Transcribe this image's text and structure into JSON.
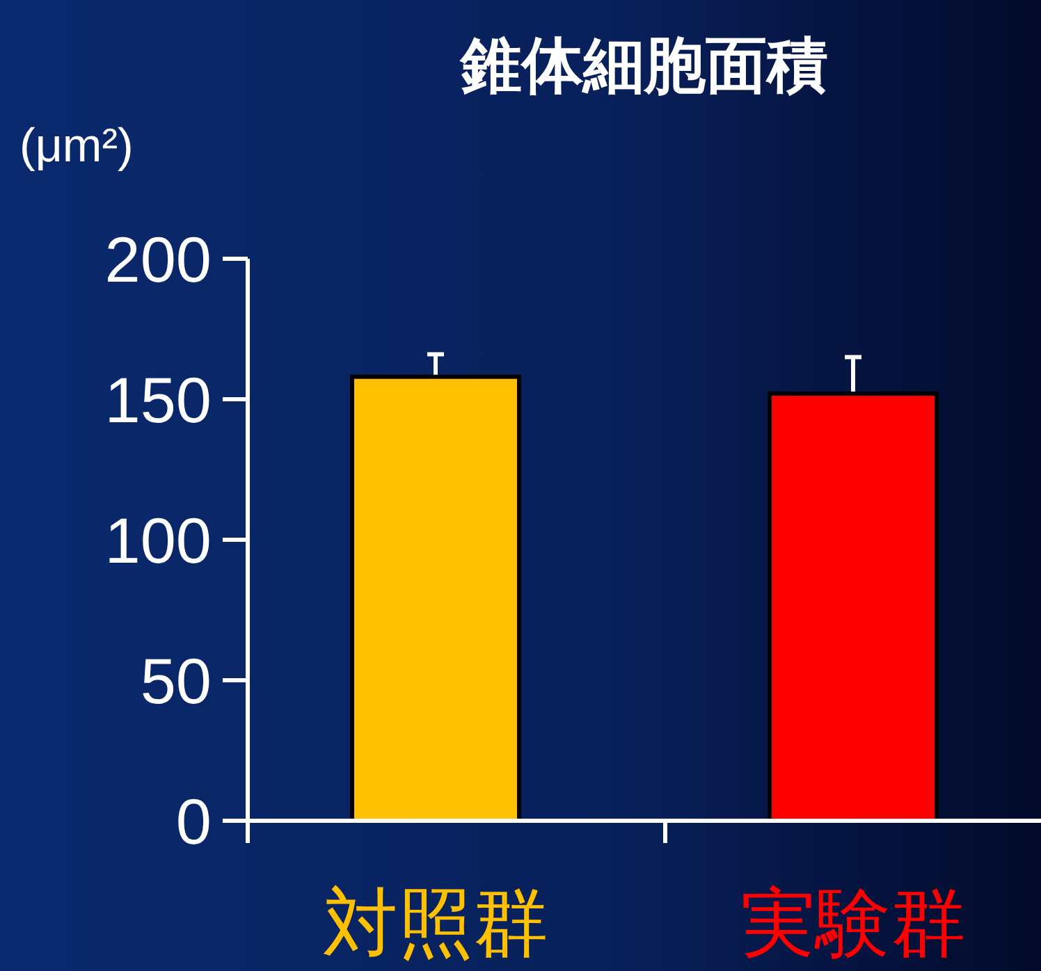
{
  "chart_data": {
    "type": "bar",
    "title": "錐体細胞面積",
    "ylabel": "(μm²)",
    "categories": [
      "対照群",
      "実験群"
    ],
    "values": [
      158,
      152
    ],
    "colors": [
      "#ffc000",
      "#ff0000"
    ],
    "errors": [
      8,
      13
    ],
    "ylim": [
      0,
      200
    ],
    "yticks": [
      0,
      50,
      100,
      150,
      200
    ],
    "grid": false
  }
}
